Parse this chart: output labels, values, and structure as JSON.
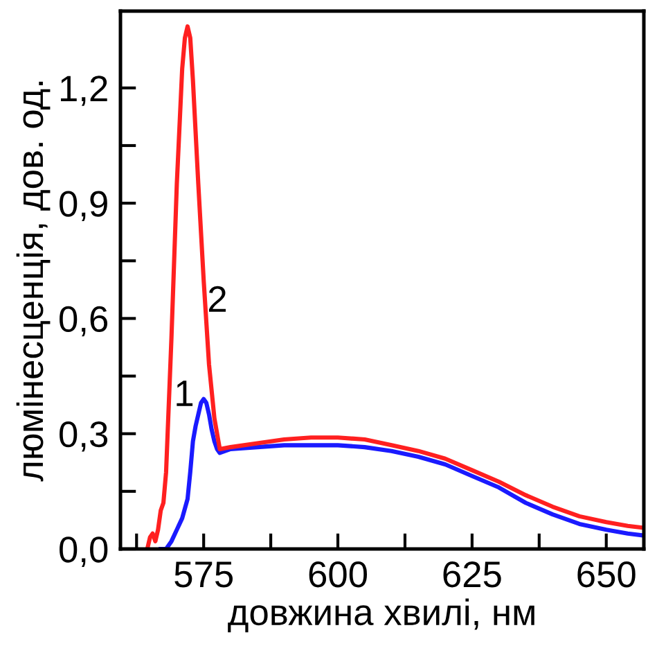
{
  "chart_data": {
    "type": "line",
    "xlabel": "довжина хвилі, нм",
    "ylabel": "люмінесценція, дов. од.",
    "xlim": [
      559.5,
      657
    ],
    "xticks": [
      {
        "value": 562.5,
        "label": null
      },
      575,
      {
        "value": 587.5,
        "label": null
      },
      600,
      {
        "value": 612.5,
        "label": null
      },
      625,
      {
        "value": 637.5,
        "label": null
      },
      650
    ],
    "ylim": [
      0,
      1.4
    ],
    "yticks": [
      {
        "value": 0,
        "label": "0,0"
      },
      {
        "value": 0.15,
        "label": null
      },
      {
        "value": 0.3,
        "label": "0,3"
      },
      {
        "value": 0.45,
        "label": null
      },
      {
        "value": 0.6,
        "label": "0,6"
      },
      {
        "value": 0.75,
        "label": null
      },
      {
        "value": 0.9,
        "label": "0,9"
      },
      {
        "value": 1.05,
        "label": null
      },
      {
        "value": 1.2,
        "label": "1,2"
      }
    ],
    "grid": false,
    "legend": false,
    "series": [
      {
        "color": "#1a1aff",
        "x": [
          567,
          568,
          569,
          570,
          571,
          572,
          572.5,
          573,
          573.5,
          574,
          574.5,
          575,
          575.5,
          576,
          576.5,
          577,
          577.5,
          578,
          580,
          585,
          590,
          595,
          600,
          605,
          610,
          615,
          620,
          625,
          630,
          635,
          640,
          645,
          650,
          654,
          657
        ],
        "values": [
          0,
          0,
          0.02,
          0.05,
          0.08,
          0.13,
          0.2,
          0.28,
          0.32,
          0.35,
          0.38,
          0.39,
          0.38,
          0.35,
          0.31,
          0.28,
          0.26,
          0.25,
          0.26,
          0.265,
          0.27,
          0.27,
          0.27,
          0.265,
          0.255,
          0.24,
          0.22,
          0.19,
          0.16,
          0.12,
          0.09,
          0.065,
          0.05,
          0.04,
          0.035
        ]
      },
      {
        "color": "#ff2020",
        "x": [
          564.5,
          565,
          565.5,
          566,
          566.5,
          567,
          567.5,
          568,
          569,
          570,
          571,
          571.5,
          572,
          572.5,
          573,
          574,
          575,
          576,
          577,
          578,
          580,
          585,
          590,
          595,
          600,
          605,
          610,
          615,
          620,
          625,
          630,
          635,
          640,
          645,
          650,
          654,
          657
        ],
        "values": [
          0,
          0.03,
          0.04,
          0.02,
          0.05,
          0.1,
          0.12,
          0.2,
          0.55,
          0.95,
          1.25,
          1.33,
          1.36,
          1.33,
          1.22,
          0.95,
          0.7,
          0.48,
          0.34,
          0.26,
          0.265,
          0.275,
          0.285,
          0.29,
          0.29,
          0.285,
          0.27,
          0.255,
          0.235,
          0.205,
          0.175,
          0.14,
          0.11,
          0.085,
          0.07,
          0.06,
          0.055
        ]
      }
    ],
    "annotations": [
      "1",
      "2"
    ]
  }
}
